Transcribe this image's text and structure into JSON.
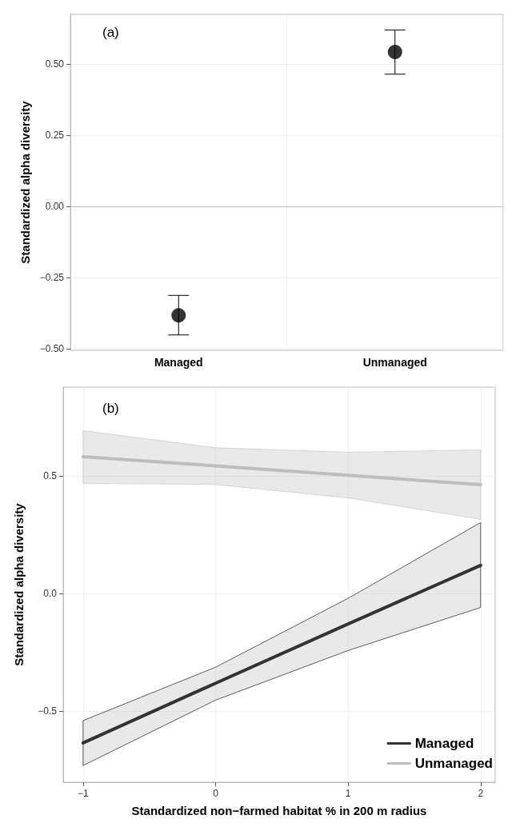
{
  "chart_data": [
    {
      "type": "scatter",
      "ylabel": "Standardized alpha diversity",
      "annotations": [
        "(a)"
      ],
      "categories": [
        "Managed",
        "Unmanaged"
      ],
      "values": [
        -0.382,
        0.543
      ],
      "errors": [
        [
          -0.451,
          -0.312
        ],
        [
          0.465,
          0.62
        ]
      ],
      "color": "#000000",
      "marker": "circle",
      "ylim": [
        -0.505,
        0.675
      ],
      "yticks": [
        {
          "value": -0.5,
          "label": "−0.50"
        },
        {
          "value": -0.25,
          "label": "−0.25"
        },
        {
          "value": 0,
          "label": "0.00"
        },
        {
          "value": 0.25,
          "label": "0.25"
        },
        {
          "value": 0.5,
          "label": "0.50"
        }
      ],
      "grid": true
    },
    {
      "type": "line",
      "xlabel": "Standardized non−farmed habitat % in 200 m radius",
      "ylabel": "Standardized alpha diversity",
      "annotations": [
        "(b)"
      ],
      "x": [
        -1,
        0,
        1,
        2
      ],
      "series": [
        {
          "name": "Managed",
          "color": "#333333",
          "values": [
            -0.635,
            -0.381,
            -0.129,
            0.12
          ],
          "lower": [
            -0.731,
            -0.453,
            -0.242,
            -0.059
          ],
          "upper": [
            -0.54,
            -0.313,
            -0.02,
            0.302
          ]
        },
        {
          "name": "Unmanaged",
          "color": "#bdbdbd",
          "values": [
            0.582,
            0.543,
            0.503,
            0.463
          ],
          "lower": [
            0.469,
            0.464,
            0.407,
            0.316
          ],
          "upper": [
            0.693,
            0.62,
            0.601,
            0.611
          ]
        }
      ],
      "xlim": [
        -1.15,
        2.11
      ],
      "xticks": [
        {
          "value": -1,
          "label": "−1"
        },
        0,
        1,
        2
      ],
      "ylim": [
        -0.802,
        0.878
      ],
      "yticks": [
        {
          "value": -0.5,
          "label": "−0.5"
        },
        {
          "value": 0,
          "label": "0.0"
        },
        {
          "value": 0.5,
          "label": "0.5"
        }
      ],
      "grid": true,
      "legend": "bottom right",
      "marker": "none",
      "line_style": "solid"
    }
  ]
}
